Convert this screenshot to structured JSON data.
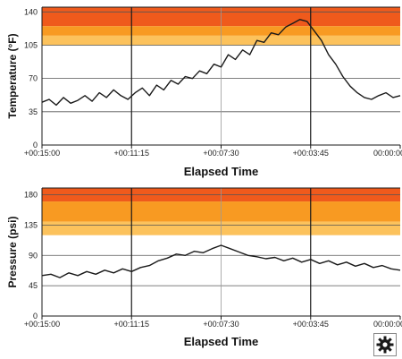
{
  "chart_data": [
    {
      "type": "line",
      "ylabel": "Temperature (°F)",
      "xlabel": "Elapsed Time",
      "ylim": [
        0,
        145
      ],
      "yticks": [
        0,
        35,
        70,
        105,
        140
      ],
      "xticks": [
        "+00:15:00",
        "+00:11:15",
        "+00:07:30",
        "+00:03:45",
        "00:00:00"
      ],
      "bands": [
        {
          "from": 125,
          "to": 145,
          "color": "#ef5a1c"
        },
        {
          "from": 115,
          "to": 125,
          "color": "#f89a22"
        },
        {
          "from": 105,
          "to": 115,
          "color": "#fcc25c"
        }
      ],
      "series": [
        {
          "color": "#1a1a1a",
          "x": [
            0,
            0.02,
            0.04,
            0.06,
            0.08,
            0.1,
            0.12,
            0.14,
            0.16,
            0.18,
            0.2,
            0.22,
            0.24,
            0.26,
            0.28,
            0.3,
            0.32,
            0.34,
            0.36,
            0.38,
            0.4,
            0.42,
            0.44,
            0.46,
            0.48,
            0.5,
            0.52,
            0.54,
            0.56,
            0.58,
            0.6,
            0.62,
            0.64,
            0.66,
            0.68,
            0.7,
            0.72,
            0.74,
            0.76,
            0.78,
            0.8,
            0.82,
            0.84,
            0.86,
            0.88,
            0.9,
            0.92,
            0.94,
            0.96,
            0.98,
            1.0
          ],
          "values": [
            45,
            48,
            42,
            50,
            44,
            47,
            52,
            46,
            55,
            50,
            58,
            52,
            48,
            55,
            60,
            52,
            63,
            58,
            68,
            64,
            72,
            70,
            78,
            75,
            85,
            82,
            95,
            90,
            100,
            95,
            110,
            108,
            118,
            116,
            124,
            128,
            132,
            130,
            120,
            110,
            95,
            85,
            72,
            62,
            55,
            50,
            48,
            52,
            55,
            50,
            52
          ]
        }
      ]
    },
    {
      "type": "line",
      "ylabel": "Pressure (psi)",
      "xlabel": "Elapsed Time",
      "ylim": [
        0,
        190
      ],
      "yticks": [
        0,
        45,
        90,
        135,
        180
      ],
      "xticks": [
        "+00:15:00",
        "+00:11:15",
        "+00:07:30",
        "+00:03:45",
        "00:00:00"
      ],
      "bands": [
        {
          "from": 170,
          "to": 190,
          "color": "#ef5a1c"
        },
        {
          "from": 140,
          "to": 170,
          "color": "#f89a22"
        },
        {
          "from": 120,
          "to": 140,
          "color": "#fcc25c"
        }
      ],
      "series": [
        {
          "color": "#1a1a1a",
          "x": [
            0,
            0.025,
            0.05,
            0.075,
            0.1,
            0.125,
            0.15,
            0.175,
            0.2,
            0.225,
            0.25,
            0.275,
            0.3,
            0.325,
            0.35,
            0.375,
            0.4,
            0.425,
            0.45,
            0.475,
            0.5,
            0.525,
            0.55,
            0.575,
            0.6,
            0.625,
            0.65,
            0.675,
            0.7,
            0.725,
            0.75,
            0.775,
            0.8,
            0.825,
            0.85,
            0.875,
            0.9,
            0.925,
            0.95,
            0.975,
            1.0
          ],
          "values": [
            60,
            62,
            57,
            64,
            60,
            66,
            62,
            68,
            64,
            70,
            66,
            72,
            75,
            82,
            86,
            92,
            90,
            96,
            94,
            100,
            105,
            100,
            95,
            90,
            88,
            85,
            87,
            82,
            86,
            80,
            84,
            78,
            82,
            76,
            80,
            74,
            78,
            72,
            75,
            70,
            68
          ]
        }
      ]
    }
  ],
  "settings_button": {
    "icon": "gear-icon"
  }
}
